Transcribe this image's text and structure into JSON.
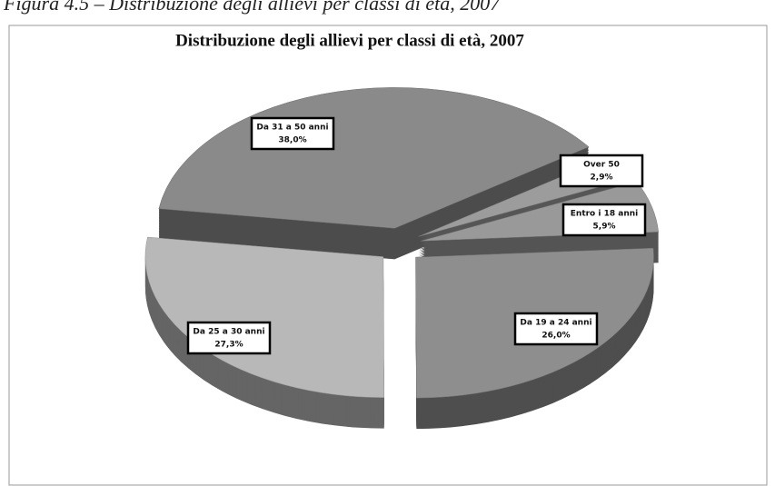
{
  "caption": "Figura 4.5 – Distribuzione degli allievi per classi di età, 2007",
  "chart_data": {
    "type": "pie",
    "title": "Distribuzione degli allievi per classi di età, 2007",
    "categories": [
      "Da 31 a 50 anni",
      "Over 50",
      "Entro i 18 anni",
      "Da 19 a 24 anni",
      "Da 25 a 30 anni"
    ],
    "values": [
      38.0,
      2.9,
      5.9,
      26.0,
      27.3
    ],
    "value_labels": [
      "38,0%",
      "2,9%",
      "5,9%",
      "26,0%",
      "27,3%"
    ],
    "colors": [
      "#8a8a8a",
      "#9c9c9c",
      "#999999",
      "#8e8e8e",
      "#b8b8b8"
    ]
  }
}
